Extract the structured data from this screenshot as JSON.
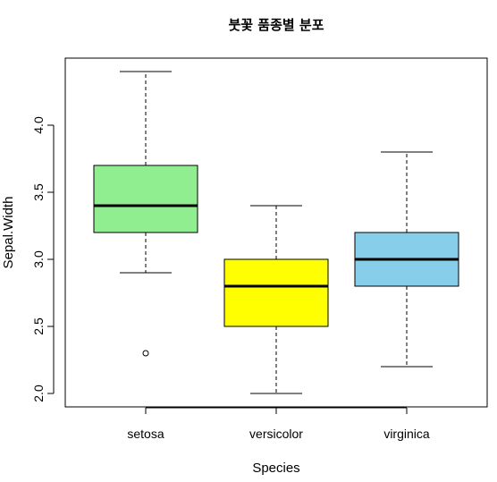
{
  "chart_data": {
    "type": "boxplot",
    "title": "붓꽃 품종별 분포",
    "xlabel": "Species",
    "ylabel": "Sepal.Width",
    "ylim": [
      1.9,
      4.5
    ],
    "yticks": [
      "2.0",
      "2.5",
      "3.0",
      "3.5",
      "4.0"
    ],
    "grid": false,
    "categories": [
      "setosa",
      "versicolor",
      "virginica"
    ],
    "boxes": [
      {
        "category": "setosa",
        "whisker_low": 2.9,
        "q1": 3.2,
        "median": 3.4,
        "q3": 3.7,
        "whisker_high": 4.4,
        "outliers": [
          2.3
        ],
        "color": "#90EE90"
      },
      {
        "category": "versicolor",
        "whisker_low": 2.0,
        "q1": 2.5,
        "median": 2.8,
        "q3": 3.0,
        "whisker_high": 3.4,
        "outliers": [],
        "color": "#FFFF00"
      },
      {
        "category": "virginica",
        "whisker_low": 2.2,
        "q1": 2.8,
        "median": 3.0,
        "q3": 3.2,
        "whisker_high": 3.8,
        "outliers": [],
        "color": "#87CEEB"
      }
    ]
  }
}
